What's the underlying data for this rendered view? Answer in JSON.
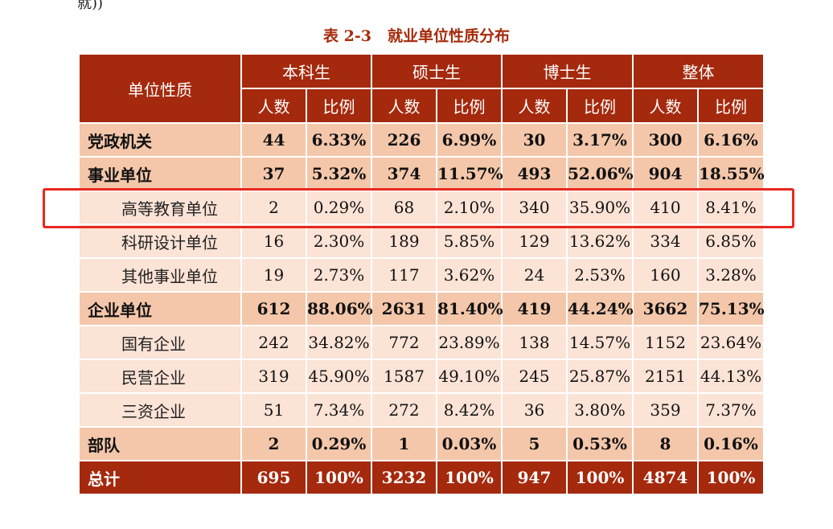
{
  "fragment_top": "就))",
  "caption": {
    "number": "表 2-3",
    "title": "就业单位性质分布"
  },
  "header": {
    "row_label": "单位性质",
    "groups": [
      "本科生",
      "硕士生",
      "博士生",
      "整体"
    ],
    "subcols": [
      "人数",
      "比例"
    ]
  },
  "rows": [
    {
      "label": "党政机关",
      "values": [
        "44",
        "6.33%",
        "226",
        "6.99%",
        "30",
        "3.17%",
        "300",
        "6.16%"
      ]
    },
    {
      "label": "事业单位",
      "values": [
        "37",
        "5.32%",
        "374",
        "11.57%",
        "493",
        "52.06%",
        "904",
        "18.55%"
      ]
    },
    {
      "label": "高等教育单位",
      "values": [
        "2",
        "0.29%",
        "68",
        "2.10%",
        "340",
        "35.90%",
        "410",
        "8.41%"
      ]
    },
    {
      "label": "科研设计单位",
      "values": [
        "16",
        "2.30%",
        "189",
        "5.85%",
        "129",
        "13.62%",
        "334",
        "6.85%"
      ]
    },
    {
      "label": "其他事业单位",
      "values": [
        "19",
        "2.73%",
        "117",
        "3.62%",
        "24",
        "2.53%",
        "160",
        "3.28%"
      ]
    },
    {
      "label": "企业单位",
      "values": [
        "612",
        "88.06%",
        "2631",
        "81.40%",
        "419",
        "44.24%",
        "3662",
        "75.13%"
      ]
    },
    {
      "label": "国有企业",
      "values": [
        "242",
        "34.82%",
        "772",
        "23.89%",
        "138",
        "14.57%",
        "1152",
        "23.64%"
      ]
    },
    {
      "label": "民营企业",
      "values": [
        "319",
        "45.90%",
        "1587",
        "49.10%",
        "245",
        "25.87%",
        "2151",
        "44.13%"
      ]
    },
    {
      "label": "三资企业",
      "values": [
        "51",
        "7.34%",
        "272",
        "8.42%",
        "36",
        "3.80%",
        "359",
        "7.37%"
      ]
    },
    {
      "label": "部队",
      "values": [
        "2",
        "0.29%",
        "1",
        "0.03%",
        "5",
        "0.53%",
        "8",
        "0.16%"
      ]
    },
    {
      "label": "总计",
      "values": [
        "695",
        "100%",
        "3232",
        "100%",
        "947",
        "100%",
        "4874",
        "100%"
      ]
    }
  ],
  "colors": {
    "header_bg": "#a5290d",
    "major_row_bg": "#f4c7aa",
    "minor_row_bg": "#fbe3d6",
    "highlight": "#e8281e"
  }
}
